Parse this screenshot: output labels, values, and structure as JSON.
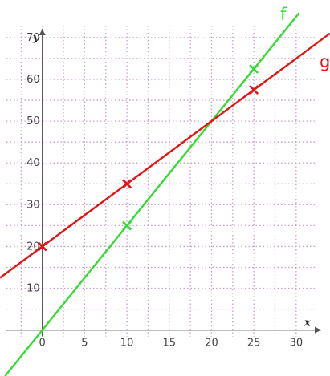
{
  "chart_data": {
    "type": "line",
    "xlabel": "x",
    "ylabel": "y",
    "xlim": [
      -5,
      34
    ],
    "ylim": [
      -11,
      79
    ],
    "grid": true,
    "x_ticks": [
      0,
      5,
      10,
      15,
      20,
      25,
      30
    ],
    "x_tick_labels": [
      "0",
      "5",
      "10",
      "15",
      "20",
      "25",
      "30"
    ],
    "y_ticks": [
      10,
      20,
      30,
      40,
      50,
      60,
      70
    ],
    "y_tick_labels": [
      "10",
      "20",
      "30",
      "40",
      "50",
      "60",
      "70"
    ],
    "series": [
      {
        "name": "f",
        "color": "#33dd33",
        "line": {
          "slope": 2.5,
          "intercept": 0
        },
        "marked_points": [
          {
            "x": 10,
            "y": 25
          },
          {
            "x": 25,
            "y": 62.5
          }
        ]
      },
      {
        "name": "g",
        "color": "#e31414",
        "line": {
          "slope": 1.5,
          "intercept": 20
        },
        "marked_points": [
          {
            "x": 0,
            "y": 20
          },
          {
            "x": 10,
            "y": 35
          },
          {
            "x": 25,
            "y": 57.5
          }
        ]
      }
    ],
    "grid_color": "#c9a0c9",
    "axis_color": "#555555"
  }
}
